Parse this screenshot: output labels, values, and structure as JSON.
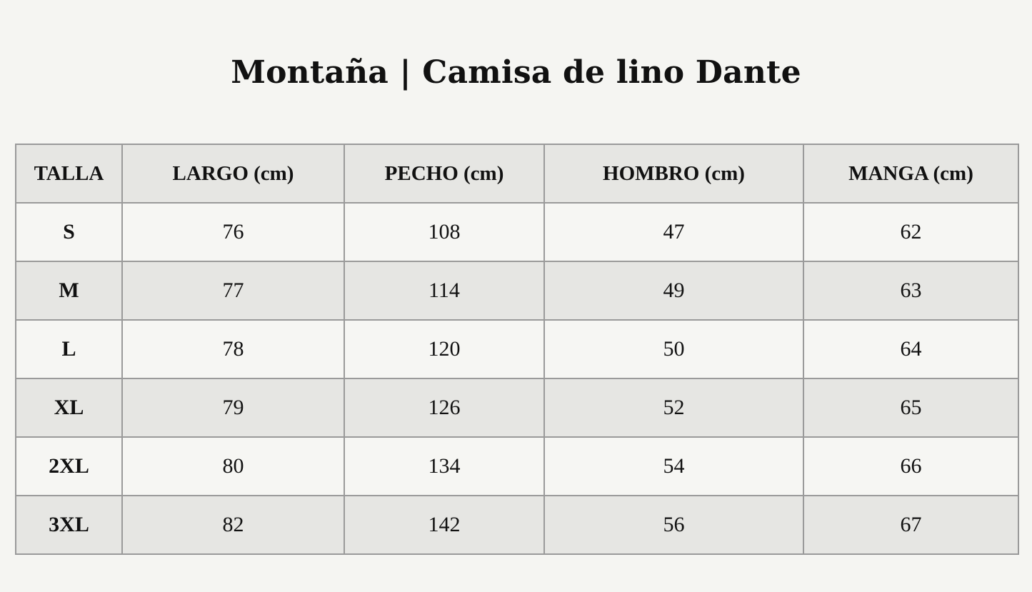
{
  "title": "Montaña | Camisa de lino Dante",
  "table": {
    "headers": [
      "TALLA",
      "LARGO (cm)",
      "PECHO (cm)",
      "HOMBRO (cm)",
      "MANGA (cm)"
    ],
    "rows": [
      {
        "talla": "S",
        "largo": "76",
        "pecho": "108",
        "hombro": "47",
        "manga": "62"
      },
      {
        "talla": "M",
        "largo": "77",
        "pecho": "114",
        "hombro": "49",
        "manga": "63"
      },
      {
        "talla": "L",
        "largo": "78",
        "pecho": "120",
        "hombro": "50",
        "manga": "64"
      },
      {
        "talla": "XL",
        "largo": "79",
        "pecho": "126",
        "hombro": "52",
        "manga": "65"
      },
      {
        "talla": "2XL",
        "largo": "80",
        "pecho": "134",
        "hombro": "54",
        "manga": "66"
      },
      {
        "talla": "3XL",
        "largo": "82",
        "pecho": "142",
        "hombro": "56",
        "manga": "67"
      }
    ]
  },
  "colors": {
    "background": "#f5f5f2",
    "row_alt": "#e6e6e3",
    "border": "#9a9a9a",
    "text": "#111111"
  }
}
